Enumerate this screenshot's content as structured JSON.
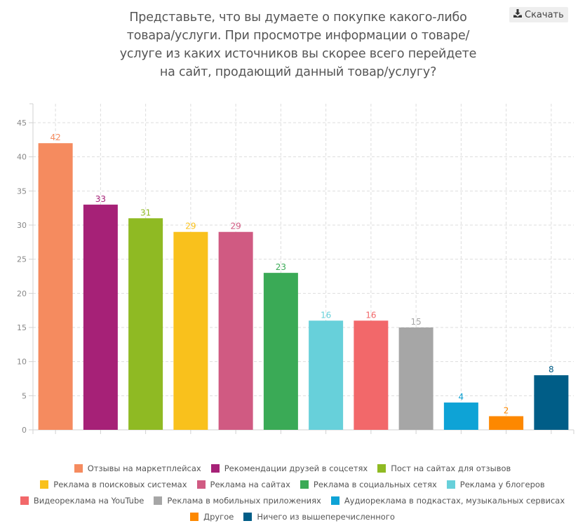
{
  "toolbar": {
    "download_label": "Скачать",
    "download_icon": "download-icon"
  },
  "chart_data": {
    "type": "bar",
    "title": "Представьте, что вы думаете о покупке какого-либо товара/услуги. При просмотре информации о товаре/ услуге из каких источников вы скорее всего перейдете на сайт, продающий данный товар/услугу?",
    "title_lines": [
      "Представьте, что вы думаете о покупке какого-либо",
      "товара/услуги. При просмотре информации о товаре/",
      "услуге из каких источников вы скорее всего перейдете",
      "на сайт, продающий данный товар/услугу?"
    ],
    "xlabel": "",
    "ylabel": "",
    "ylim": [
      0,
      45
    ],
    "yticks": [
      0,
      5,
      10,
      15,
      20,
      25,
      30,
      35,
      40,
      45
    ],
    "grid": true,
    "legend_position": "bottom",
    "categories": [
      "Отзывы на маркетплейсах",
      "Рекомендации друзей в соцсетях",
      "Пост на сайтах для отзывов",
      "Реклама в поисковых системах",
      "Реклама на сайтах",
      "Реклама в социальных сетях",
      "Реклама у блогеров",
      "Видеореклама на YouTube",
      "Реклама в мобильных приложениях",
      "Аудиореклама в подкастах, музыкальных сервисах",
      "Другое",
      "Ничего из вышеперечисленного"
    ],
    "values": [
      42,
      33,
      31,
      29,
      29,
      23,
      16,
      16,
      15,
      4,
      2,
      8
    ],
    "colors": [
      "#f58b5f",
      "#a62177",
      "#8fba23",
      "#f9c11c",
      "#d05a82",
      "#3aaa56",
      "#67d0da",
      "#f2686a",
      "#a6a6a6",
      "#0ea3d6",
      "#fd8800",
      "#005d87"
    ],
    "legend_rows": [
      [
        0,
        1,
        2
      ],
      [
        3,
        4,
        5,
        6
      ],
      [
        7,
        8,
        9
      ],
      [
        10,
        11
      ]
    ]
  }
}
